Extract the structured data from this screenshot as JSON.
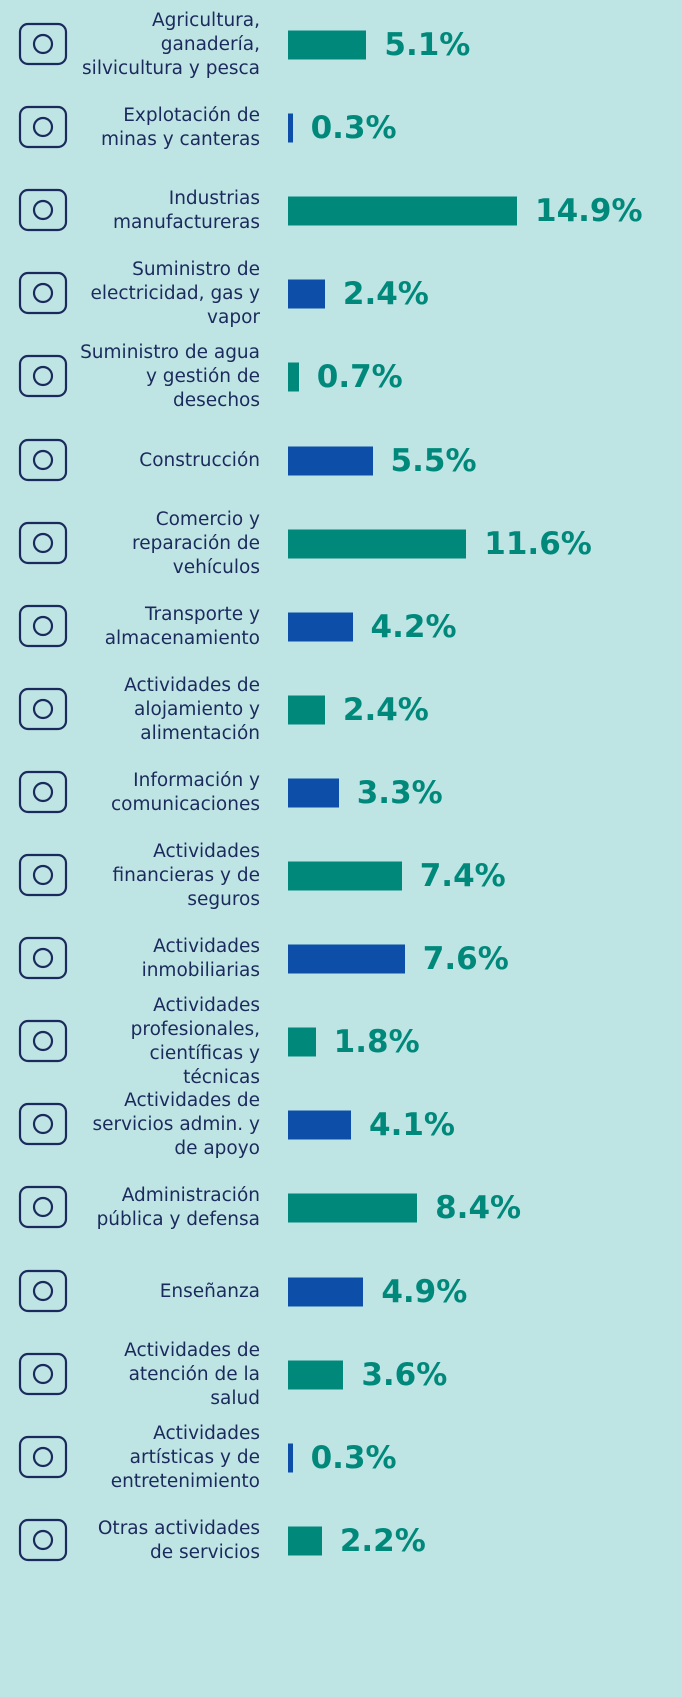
{
  "chart_data": {
    "type": "bar",
    "orientation": "horizontal",
    "categories": [
      "Agricultura, ganadería, silvicultura y pesca",
      "Explotación de minas y canteras",
      "Industrias manufactureras",
      "Suministro de electricidad, gas y vapor",
      "Suministro de agua y gestión de desechos",
      "Construcción",
      "Comercio y reparación de vehículos",
      "Transporte y almacenamiento",
      "Actividades de alojamiento y alimentación",
      "Información y comunicaciones",
      "Actividades financieras y de seguros",
      "Actividades inmobiliarias",
      "Actividades profesionales, científicas y técnicas",
      "Actividades de servicios admin. y de apoyo",
      "Administración pública y defensa",
      "Enseñanza",
      "Actividades de atención de la salud",
      "Actividades artísticas y de entretenimiento",
      "Otras actividades de servicios"
    ],
    "values": [
      5.1,
      0.3,
      14.9,
      2.4,
      0.7,
      5.5,
      11.6,
      4.2,
      2.4,
      3.3,
      7.4,
      7.6,
      1.8,
      4.1,
      8.4,
      4.9,
      3.6,
      0.3,
      2.2
    ],
    "value_labels": [
      "5.1%",
      "0.3%",
      "14.9%",
      "2.4%",
      "0.7%",
      "5.5%",
      "11.6%",
      "4.2%",
      "2.4%",
      "3.3%",
      "7.4%",
      "7.6%",
      "1.8%",
      "4.1%",
      "8.4%",
      "4.9%",
      "3.6%",
      "0.3%",
      "2.2%"
    ],
    "colors": [
      "#00897b",
      "#0d4fa8",
      "#00897b",
      "#0d4fa8",
      "#00897b",
      "#0d4fa8",
      "#00897b",
      "#0d4fa8",
      "#00897b",
      "#0d4fa8",
      "#00897b",
      "#0d4fa8",
      "#00897b",
      "#0d4fa8",
      "#00897b",
      "#0d4fa8",
      "#00897b",
      "#0d4fa8",
      "#00897b"
    ],
    "value_label_color": "#00897b"
  }
}
